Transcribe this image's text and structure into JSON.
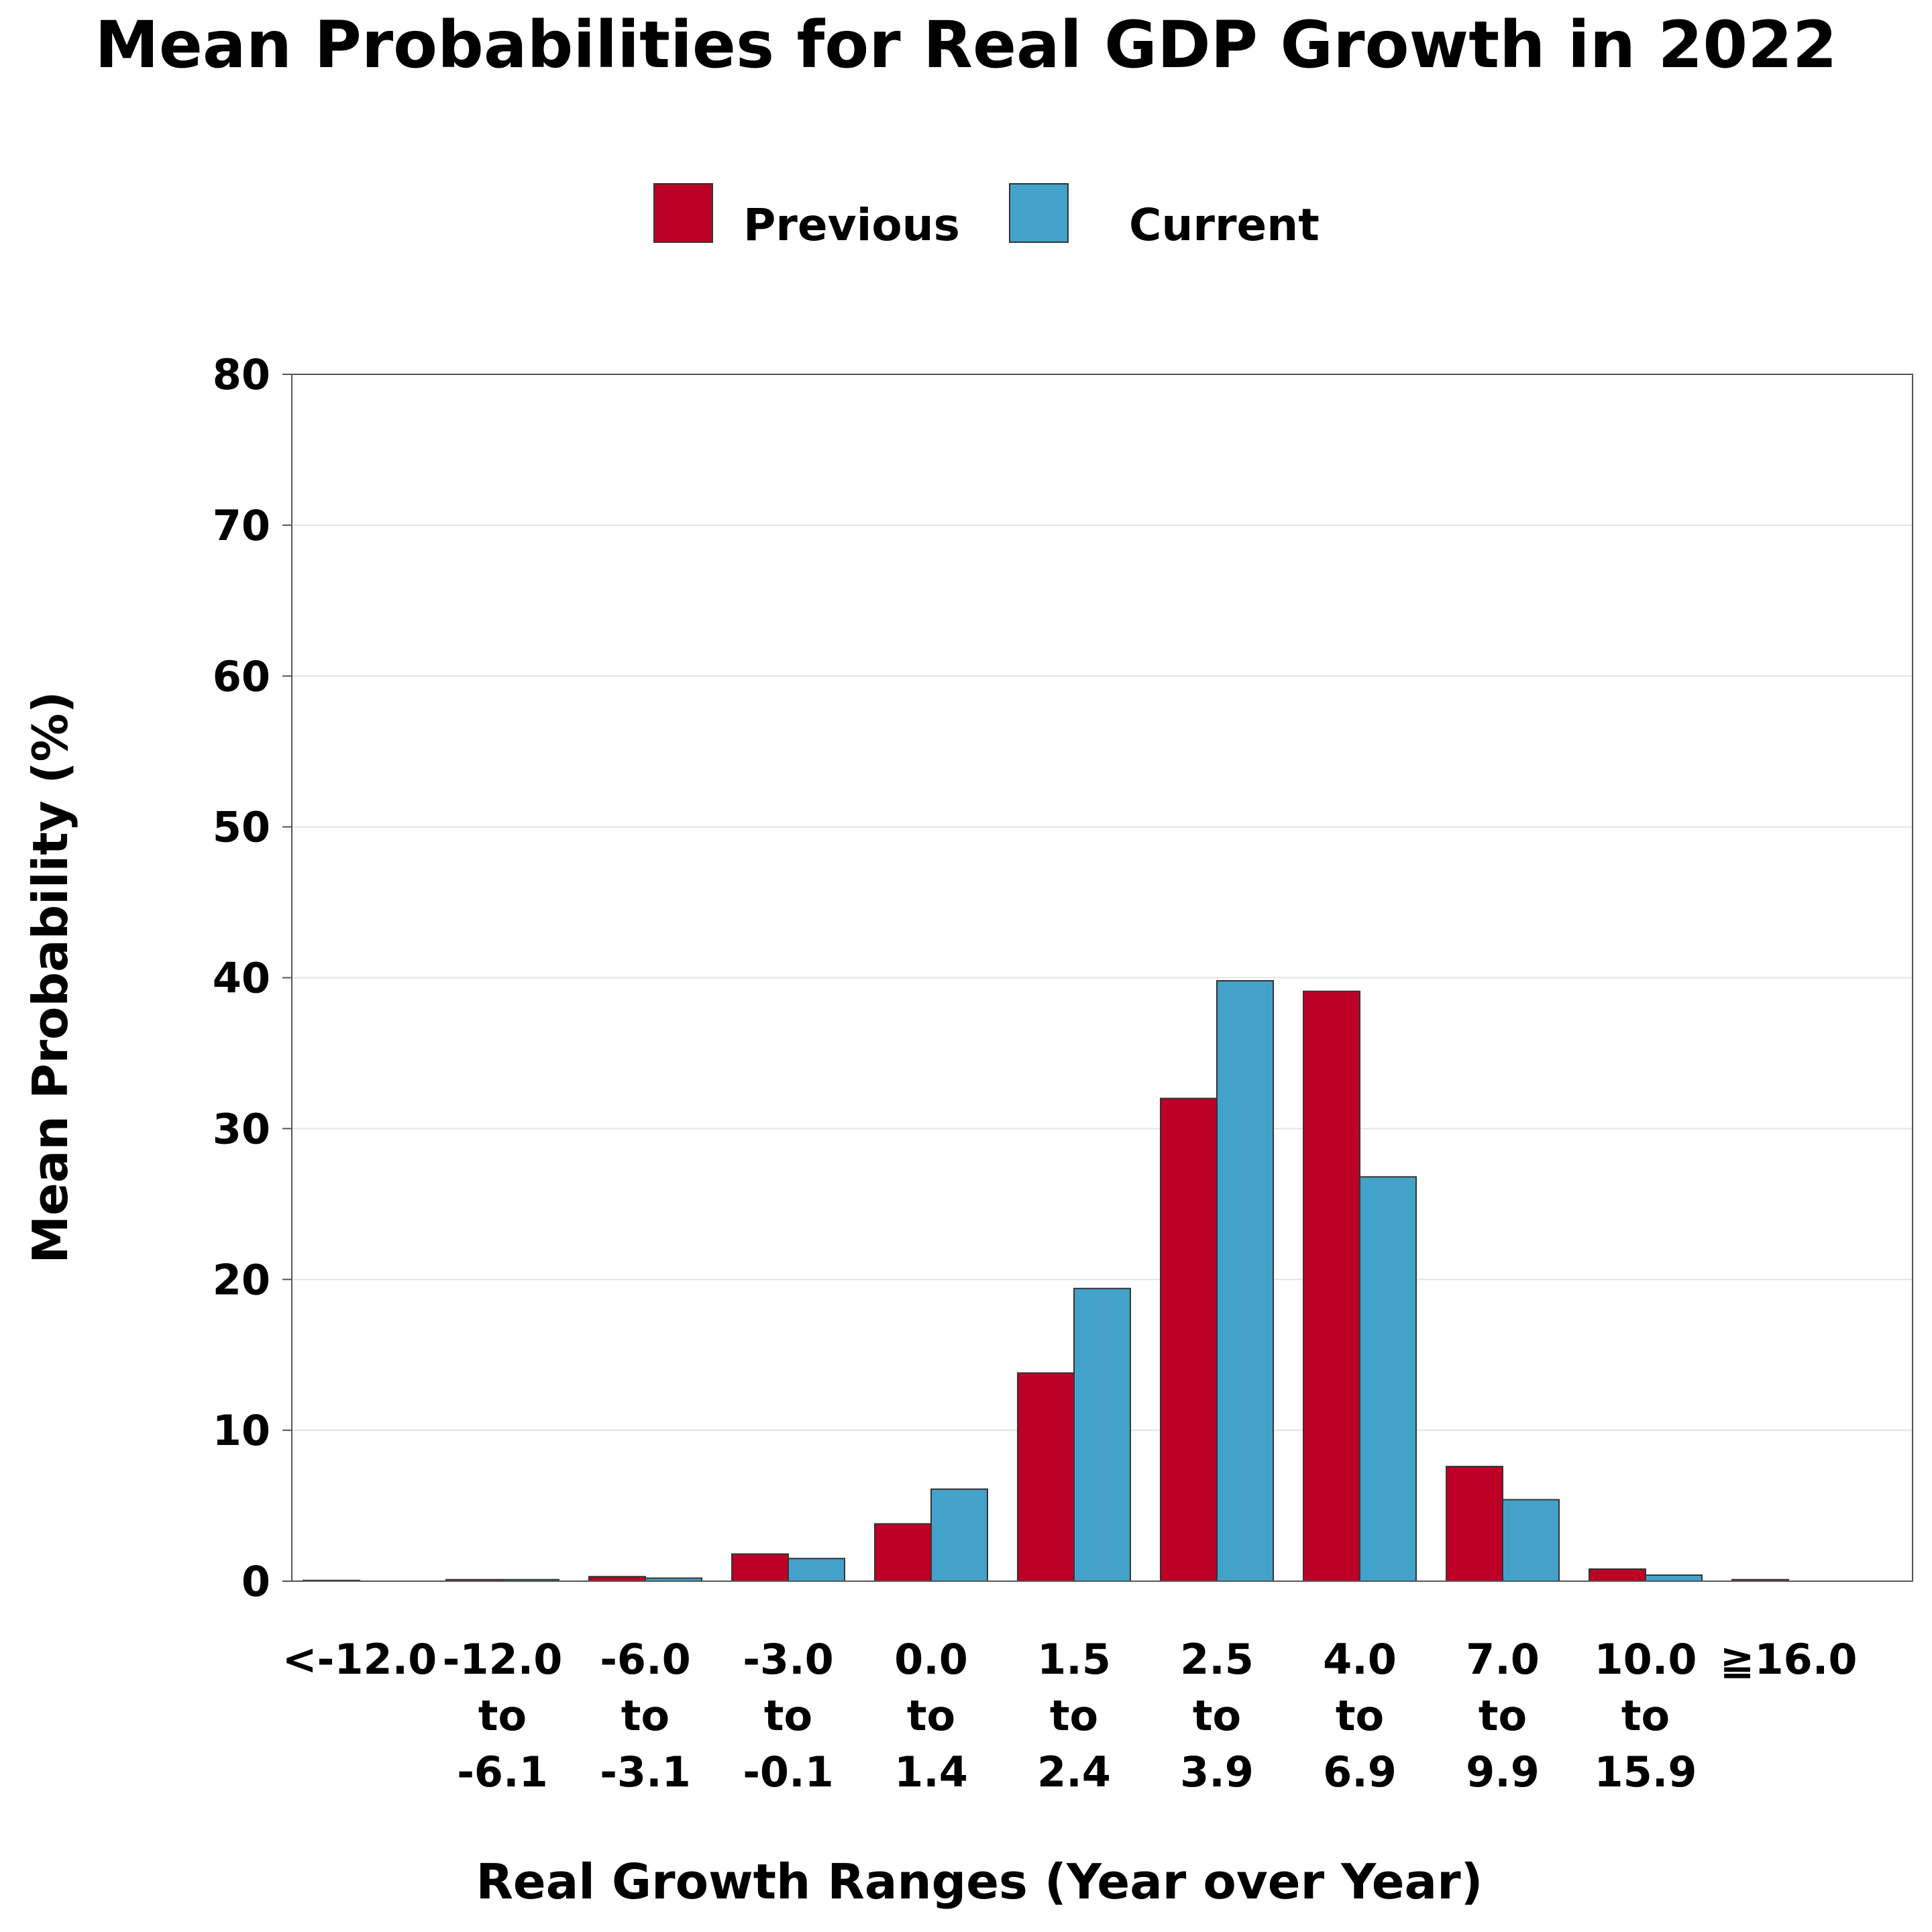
{
  "chart_data": {
    "type": "bar",
    "title": "Mean Probabilities for Real GDP Growth in 2022",
    "xlabel": "Real Growth Ranges (Year over Year)",
    "ylabel": "Mean Probability (%)",
    "ylim": [
      0,
      80
    ],
    "yticks": [
      0,
      10,
      20,
      30,
      40,
      50,
      60,
      70,
      80
    ],
    "grid": true,
    "legend_position": "top-center",
    "categories": [
      [
        "<-12.0"
      ],
      [
        "-12.0",
        "to",
        "-6.1"
      ],
      [
        "-6.0",
        "to",
        "-3.1"
      ],
      [
        "-3.0",
        "to",
        "-0.1"
      ],
      [
        "0.0",
        "to",
        "1.4"
      ],
      [
        "1.5",
        "to",
        "2.4"
      ],
      [
        "2.5",
        "to",
        "3.9"
      ],
      [
        "4.0",
        "to",
        "6.9"
      ],
      [
        "7.0",
        "to",
        "9.9"
      ],
      [
        "10.0",
        "to",
        "15.9"
      ],
      [
        "≧16.0"
      ]
    ],
    "series": [
      {
        "name": "Previous",
        "color": "#BD0026",
        "values": [
          0.05,
          0.1,
          0.3,
          1.8,
          3.8,
          13.8,
          32.0,
          39.1,
          7.6,
          0.8,
          0.1
        ]
      },
      {
        "name": "Current",
        "color": "#43A2CA",
        "values": [
          0.0,
          0.1,
          0.2,
          1.5,
          6.1,
          19.4,
          39.8,
          26.8,
          5.4,
          0.4,
          0.0
        ]
      }
    ]
  }
}
